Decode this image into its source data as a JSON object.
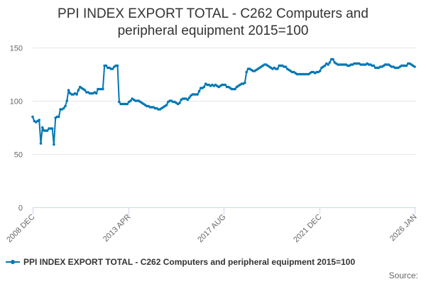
{
  "chart_data": {
    "type": "line",
    "title_lines": [
      "PPI INDEX EXPORT TOTAL - C262 Computers and",
      "peripheral equipment 2015=100"
    ],
    "xlabel": "",
    "ylabel": "",
    "ylim": [
      0,
      150
    ],
    "y_ticks": [
      0,
      50,
      100,
      150
    ],
    "x_tick_labels": [
      "2008 DEC",
      "2013 APR",
      "2017 AUG",
      "2021 DEC",
      "2026 JAN"
    ],
    "x_start": "2008-12",
    "x_end": "2026-01",
    "grid": "horizontal",
    "legend_position": "bottom-left",
    "color": "#0077b3",
    "credits": "Source:",
    "series": [
      {
        "name": "PPI INDEX EXPORT TOTAL - C262 Computers and peripheral equipment 2015=100",
        "values": [
          85,
          81,
          80,
          81,
          82,
          60,
          75,
          72,
          72,
          72,
          74,
          74,
          74,
          59,
          84,
          85,
          85,
          92,
          92,
          93,
          95,
          100,
          110,
          107,
          106,
          106,
          107,
          106,
          110,
          113,
          112,
          111,
          110,
          108,
          108,
          107,
          107,
          107,
          108,
          107,
          111,
          111,
          111,
          111,
          133,
          133,
          131,
          131,
          130,
          130,
          132,
          133,
          133,
          99,
          97,
          97,
          97,
          97,
          97,
          99,
          100,
          102,
          101,
          100,
          100,
          100,
          99,
          98,
          97,
          96,
          95,
          95,
          94,
          94,
          94,
          93,
          93,
          92,
          92,
          93,
          94,
          95,
          96,
          99,
          100,
          100,
          99,
          99,
          98,
          97,
          98,
          101,
          102,
          102,
          102,
          101,
          103,
          105,
          106,
          106,
          106,
          106,
          109,
          112,
          112,
          113,
          116,
          115,
          115,
          114,
          115,
          114,
          115,
          114,
          113,
          114,
          115,
          115,
          115,
          113,
          113,
          112,
          111,
          111,
          111,
          113,
          114,
          115,
          116,
          116,
          117,
          127,
          130,
          130,
          129,
          128,
          128,
          129,
          130,
          131,
          132,
          133,
          134,
          134,
          133,
          132,
          131,
          130,
          131,
          130,
          130,
          133,
          133,
          133,
          132,
          132,
          130,
          129,
          128,
          127,
          127,
          126,
          125,
          125,
          125,
          125,
          125,
          125,
          125,
          125,
          126,
          127,
          127,
          126,
          127,
          127,
          128,
          131,
          132,
          133,
          135,
          134,
          136,
          139,
          139,
          136,
          135,
          134,
          134,
          134,
          134,
          134,
          134,
          133,
          133,
          134,
          134,
          135,
          135,
          135,
          135,
          134,
          134,
          134,
          134,
          135,
          134,
          134,
          133,
          133,
          131,
          131,
          131,
          132,
          132,
          133,
          134,
          134,
          134,
          133,
          132,
          132,
          131,
          131,
          131,
          132,
          133,
          133,
          133,
          133,
          135,
          135,
          134,
          133,
          132
        ]
      }
    ]
  }
}
